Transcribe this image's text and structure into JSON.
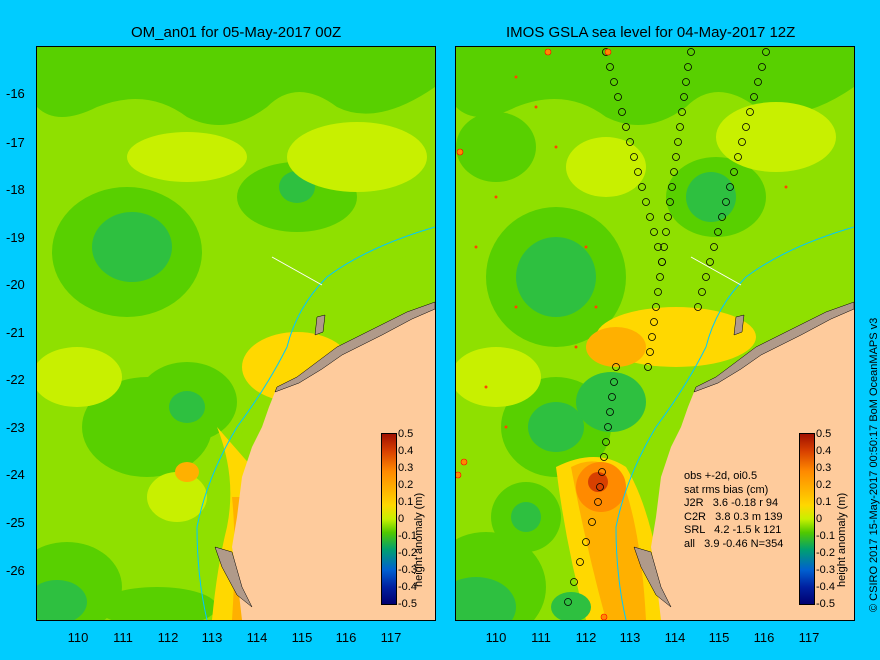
{
  "panels": [
    {
      "title": "OM_an01 for 05-May-2017 00Z"
    },
    {
      "title": "IMOS GSLA sea level  for 04-May-2017 12Z"
    }
  ],
  "axes": {
    "lat_ticks": [
      "-16",
      "-17",
      "-18",
      "-19",
      "-20",
      "-21",
      "-22",
      "-23",
      "-24",
      "-25",
      "-26"
    ],
    "lon_ticks": [
      "110",
      "111",
      "112",
      "113",
      "114",
      "115",
      "116",
      "117"
    ]
  },
  "colorbar": {
    "label": "height anomaly (m)",
    "ticks": [
      "0.5",
      "0.4",
      "0.3",
      "0.2",
      "0.1",
      "0",
      "-0.1",
      "-0.2",
      "-0.3",
      "-0.4",
      "-0.5"
    ],
    "colors": [
      "#a01000",
      "#d84000",
      "#ff8a00",
      "#ffb000",
      "#ffd800",
      "#c8f000",
      "#50c800",
      "#00a070",
      "#0060d0",
      "#0020a0",
      "#000070"
    ]
  },
  "stats": {
    "lines": [
      "obs +-2d, oi0.5",
      "sat rms bias (cm)",
      "J2R   3.6 -0.18 r 94",
      "C2R   3.8 0.3 m 139",
      "SRL   4.2 -1.5 k 121",
      "all   3.9 -0.46 N=354"
    ]
  },
  "credit": "© CSIRO 2017  15-May-2017 00:50:17 BoM OceanMAPS v3",
  "colors": {
    "background": "#00ccff",
    "land": "#fecb9c",
    "coast": "#b09a8a"
  }
}
